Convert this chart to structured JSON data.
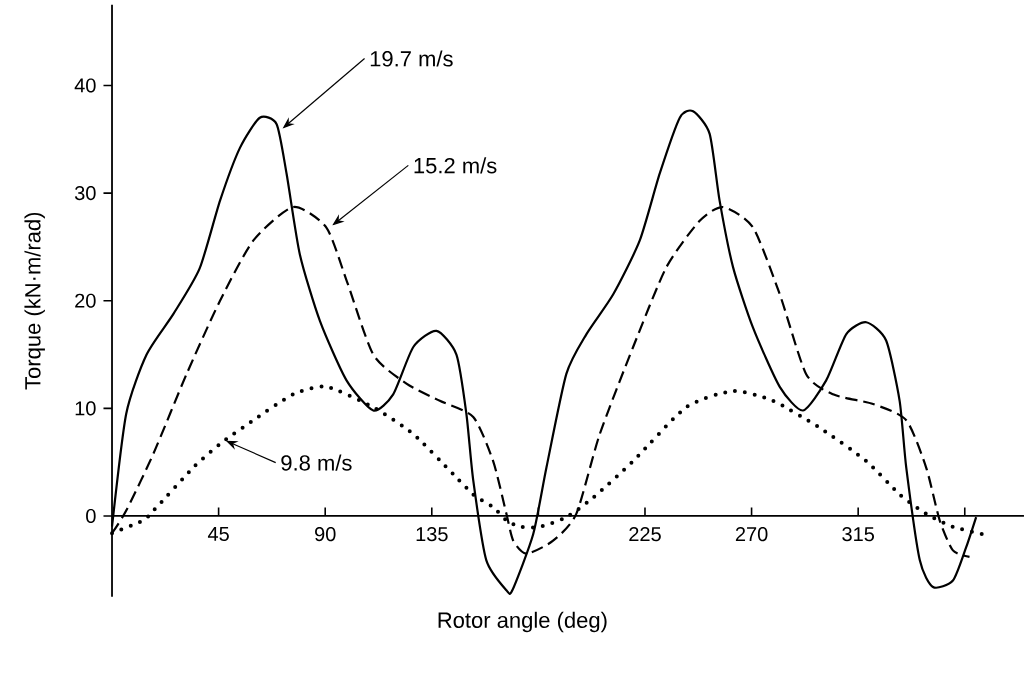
{
  "chart_data": {
    "type": "line",
    "xlabel": "Rotor angle (deg)",
    "ylabel": "Torque (kN·m/rad)",
    "xlim": [
      0,
      385
    ],
    "ylim": [
      -7.5,
      47.5
    ],
    "xticks": [
      45,
      90,
      135,
      {
        "value": 180,
        "label": null
      },
      225,
      270,
      315,
      {
        "value": 360,
        "label": null
      }
    ],
    "yticks": [
      0,
      10,
      20,
      30,
      40
    ],
    "series": [
      {
        "color": "#000000",
        "line_style": "solid",
        "x": [
          0,
          6,
          14.6,
          26,
          37,
          45.6,
          54,
          62.4,
          69.5,
          73.7,
          79.3,
          87.8,
          99,
          110.3,
          118.7,
          127.2,
          137,
          145.4,
          149.6,
          152.5,
          158,
          166.5,
          169,
          177.8,
          183.4,
          191.8,
          200.3,
          211.6,
          222.8,
          231.2,
          239.7,
          245.3,
          252.3,
          256.5,
          262.2,
          270.6,
          281.9,
          291.7,
          301.5,
          310,
          318.4,
          326.8,
          332.5,
          335.3,
          341,
          346.6,
          355,
          360.6,
          364.8
        ],
        "values": [
          -1,
          9.5,
          15,
          18.8,
          23,
          29.3,
          34.2,
          37,
          36.4,
          31.8,
          24.3,
          18.1,
          12.6,
          9.8,
          11.3,
          15.7,
          17.2,
          15,
          9.5,
          3.3,
          -4.1,
          -6.9,
          -6.9,
          -1.7,
          4.5,
          13.2,
          16.9,
          20.6,
          25.6,
          31.8,
          37,
          37.6,
          35.5,
          29.3,
          23.1,
          17.5,
          12,
          9.8,
          12.6,
          16.9,
          18,
          16.3,
          10.7,
          4.5,
          -4.1,
          -6.6,
          -6,
          -2.9,
          -0.1
        ]
      },
      {
        "color": "#000000",
        "line_style": "dashed",
        "x": [
          0,
          6,
          17.5,
          31.5,
          45.6,
          59.7,
          76.5,
          90.5,
          99,
          110.3,
          124.3,
          138.4,
          152.5,
          160.9,
          166.5,
          169.4,
          175,
          186.2,
          196,
          205.9,
          220,
          234,
          248,
          258,
          270.6,
          281.9,
          293,
          304.4,
          321.3,
          335.3,
          343.7,
          349.4,
          355,
          362
        ],
        "values": [
          -1.6,
          0.5,
          5.8,
          13.2,
          20,
          25.6,
          28.7,
          26.8,
          21.9,
          15,
          12.3,
          10.7,
          9.2,
          5.1,
          0.2,
          -2.3,
          -3.5,
          -2.3,
          0.2,
          7.6,
          15.7,
          23.1,
          27.4,
          28.7,
          26.8,
          20.6,
          13.2,
          11.3,
          10.4,
          8.9,
          4.5,
          -0.4,
          -3.2,
          -3.8
        ]
      },
      {
        "color": "#000000",
        "line_style": "dotted",
        "x": [
          0,
          13.2,
          18.8,
          34.3,
          45.6,
          59.7,
          76.5,
          90.5,
          110.3,
          127.2,
          144,
          152.5,
          161,
          166.5,
          172.2,
          180.6,
          191.8,
          203.1,
          220,
          242.4,
          262.2,
          279,
          298.7,
          318.4,
          332.5,
          343.7,
          355,
          367.7
        ],
        "values": [
          -1.6,
          -0.4,
          0.8,
          4.5,
          6.7,
          8.9,
          11.3,
          12,
          10.1,
          7.6,
          3.9,
          2,
          0.8,
          -0.4,
          -1,
          -1,
          -0.1,
          1.7,
          5.1,
          10.1,
          11.6,
          10.7,
          8.2,
          5.1,
          2,
          0.2,
          -1,
          -1.7
        ]
      }
    ],
    "annotations": [
      {
        "text": "19.7 m/s",
        "x": 72,
        "y": 36
      },
      {
        "text": "15.2 m/s",
        "x": 93,
        "y": 27
      },
      {
        "text": "9.8 m/s",
        "x": 48,
        "y": 7
      }
    ]
  }
}
